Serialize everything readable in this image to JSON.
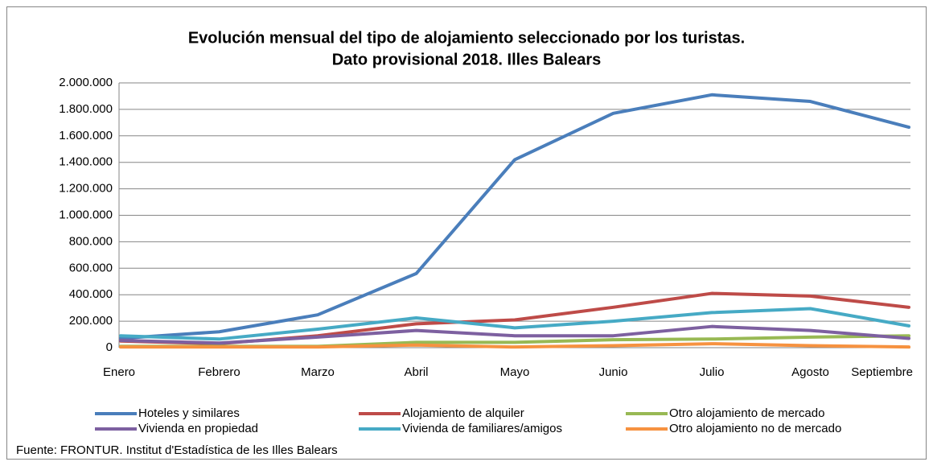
{
  "chart_data": {
    "type": "line",
    "title": [
      "Evolución mensual del tipo de alojamiento seleccionado por los turistas.",
      "Dato provisional 2018. Illes Balears"
    ],
    "categories": [
      "Enero",
      "Febrero",
      "Marzo",
      "Abril",
      "Mayo",
      "Junio",
      "Julio",
      "Agosto",
      "Septiembre"
    ],
    "series": [
      {
        "name": "Hoteles y similares",
        "color": "#4a7ebb",
        "values": [
          70000,
          120000,
          248000,
          560000,
          1420000,
          1770000,
          1910000,
          1860000,
          1665000
        ]
      },
      {
        "name": "Alojamiento de alquiler",
        "color": "#be4b48",
        "values": [
          50000,
          30000,
          90000,
          180000,
          210000,
          305000,
          410000,
          390000,
          305000
        ]
      },
      {
        "name": "Otro alojamiento  de mercado",
        "color": "#98b954",
        "values": [
          10000,
          10000,
          10000,
          40000,
          40000,
          60000,
          65000,
          80000,
          90000
        ]
      },
      {
        "name": "Vivienda en propiedad",
        "color": "#7d60a0",
        "values": [
          55000,
          35000,
          80000,
          130000,
          90000,
          90000,
          160000,
          130000,
          70000
        ]
      },
      {
        "name": "Vivienda de familiares/amigos",
        "color": "#46aac5",
        "values": [
          90000,
          65000,
          140000,
          225000,
          150000,
          200000,
          265000,
          295000,
          165000
        ]
      },
      {
        "name": "Otro alojamiento  no de mercado",
        "color": "#f69240",
        "values": [
          5000,
          5000,
          5000,
          20000,
          5000,
          15000,
          30000,
          15000,
          5000
        ]
      }
    ],
    "ylim": [
      0,
      2000000
    ],
    "yticks": [
      0,
      {
        "value": 200000,
        "label": "200.000"
      },
      {
        "value": 400000,
        "label": "400.000"
      },
      {
        "value": 600000,
        "label": "600.000"
      },
      {
        "value": 800000,
        "label": "800.000"
      },
      {
        "value": 1000000,
        "label": "1.000.000"
      },
      {
        "value": 1200000,
        "label": "1.200.000"
      },
      {
        "value": 1400000,
        "label": "1.400.000"
      },
      {
        "value": 1600000,
        "label": "1.600.000"
      },
      {
        "value": 1800000,
        "label": "1.800.000"
      },
      {
        "value": 2000000,
        "label": "2.000.000"
      }
    ],
    "grid": true,
    "source": "Fuente: FRONTUR.  Institut d'Estadística  de les Illes Balears"
  }
}
